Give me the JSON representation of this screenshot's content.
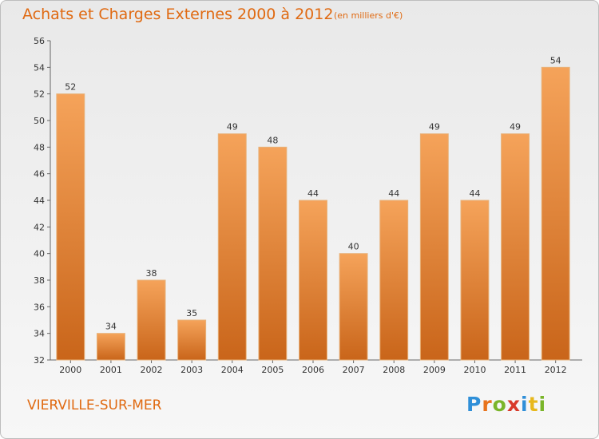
{
  "chart_data": {
    "type": "bar",
    "title": "Achats et Charges Externes 2000 à 2012",
    "subtitle": "(en milliers d'€)",
    "categories": [
      "2000",
      "2001",
      "2002",
      "2003",
      "2004",
      "2005",
      "2006",
      "2007",
      "2008",
      "2009",
      "2010",
      "2011",
      "2012"
    ],
    "values": [
      52,
      34,
      38,
      35,
      49,
      48,
      44,
      40,
      44,
      49,
      44,
      49,
      54
    ],
    "yticks": [
      32,
      34,
      36,
      38,
      40,
      42,
      44,
      46,
      48,
      50,
      52,
      54,
      56
    ],
    "ylim": [
      32,
      56
    ],
    "grid": false,
    "bar_color": "#f0903a",
    "bar_color_dark": "#c9651a"
  },
  "footer": {
    "commune": "VIERVILLE-SUR-MER",
    "logo": "Proxiti"
  }
}
